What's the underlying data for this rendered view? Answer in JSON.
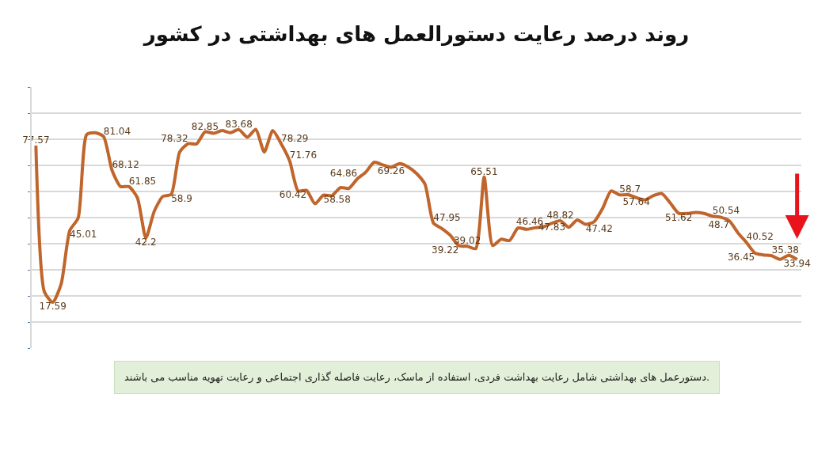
{
  "chart_data": {
    "type": "line",
    "title": "روند درصد رعایت دستورالعمل های بهداشتی در کشور",
    "annotations": [
      "دستورعمل های بهداشتی شامل رعایت بهداشت فردی، استفاده از ماسک، رعایت فاصله گذاری اجتماعی و رعایت تهویه مناسب می باشند."
    ],
    "categories": [
      null,
      null,
      null,
      null,
      null,
      null,
      null,
      null,
      null,
      null,
      null,
      null,
      null,
      null,
      null,
      null,
      null,
      null,
      null,
      null,
      null,
      null,
      null,
      null,
      null,
      null,
      null,
      null,
      null,
      null,
      null,
      null,
      null,
      null,
      null,
      null,
      null,
      null,
      null,
      null,
      null,
      null,
      null,
      null,
      null,
      null,
      null,
      null,
      null,
      null,
      null,
      null,
      null,
      null,
      null,
      null,
      null,
      null,
      null,
      null,
      null,
      null,
      null,
      null,
      null,
      null,
      null,
      null,
      null,
      null,
      null,
      null,
      null,
      null,
      null,
      null,
      null,
      null,
      null,
      null,
      null,
      null,
      null,
      null,
      null,
      null,
      null,
      null,
      null,
      null,
      null
    ],
    "series": [
      {
        "color": "#c0652b",
        "values": [
          77.57,
          21.6,
          17.59,
          24.7,
          45.01,
          49.9,
          81.8,
          82.5,
          81.04,
          68.12,
          61.9,
          61.85,
          57.6,
          42.2,
          52.5,
          58.1,
          58.9,
          75.1,
          78.32,
          78.2,
          82.85,
          82.3,
          83.3,
          82.5,
          83.68,
          80.8,
          83.8,
          75.1,
          83.3,
          78.29,
          71.76,
          60.2,
          60.42,
          55.3,
          58.58,
          58.4,
          61.5,
          61.2,
          64.86,
          67.4,
          71.2,
          70.2,
          69.26,
          70.7,
          69.4,
          66.9,
          62.8,
          47.95,
          45.8,
          43.2,
          39.22,
          39.02,
          38.1,
          65.51,
          39.3,
          41.7,
          41.2,
          46.0,
          45.5,
          46.1,
          46.46,
          47.83,
          48.82,
          46.3,
          49.1,
          47.42,
          48.4,
          53.5,
          60.2,
          58.7,
          58.8,
          57.64,
          56.8,
          58.4,
          59.2,
          55.6,
          51.62,
          51.6,
          52.0,
          51.6,
          50.54,
          50.1,
          48.7,
          44.2,
          40.52,
          36.45,
          35.7,
          35.38,
          34.0,
          35.5,
          33.94
        ],
        "value_labels": [
          "77.57",
          null,
          "17.59",
          null,
          "45.01",
          null,
          null,
          null,
          "81.04",
          "68.12",
          null,
          "61.85",
          null,
          "42.2",
          null,
          null,
          "58.9",
          null,
          "78.32",
          null,
          "82.85",
          null,
          null,
          null,
          "83.68",
          null,
          null,
          null,
          null,
          "78.29",
          "71.76",
          null,
          "60.42",
          null,
          "58.58",
          null,
          null,
          null,
          "64.86",
          null,
          null,
          null,
          "69.26",
          null,
          null,
          null,
          null,
          "47.95",
          null,
          null,
          "39.22",
          "39.02",
          null,
          "65.51",
          null,
          null,
          null,
          null,
          null,
          null,
          "46.46",
          "47.83",
          "48.82",
          null,
          null,
          "47.42",
          null,
          null,
          null,
          "58.7",
          null,
          "57.64",
          null,
          null,
          null,
          null,
          "51.62",
          null,
          null,
          null,
          "50.54",
          null,
          "48.7",
          null,
          "40.52",
          "36.45",
          null,
          "35.38",
          null,
          null,
          "33.94"
        ]
      }
    ],
    "ylim": [
      0,
      100
    ],
    "yticks": [
      {
        "value": 0,
        "label": null
      },
      {
        "value": 10,
        "label": null
      },
      {
        "value": 20,
        "label": null
      },
      {
        "value": 30,
        "label": null
      },
      {
        "value": 40,
        "label": null
      },
      {
        "value": 50,
        "label": null
      },
      {
        "value": 60,
        "label": null
      },
      {
        "value": 70,
        "label": null
      },
      {
        "value": 80,
        "label": null
      },
      {
        "value": 90,
        "label": null
      },
      {
        "value": 100,
        "label": null
      }
    ],
    "grid": "y",
    "tick_labels": false,
    "marker": "none",
    "line_style": "solid"
  }
}
